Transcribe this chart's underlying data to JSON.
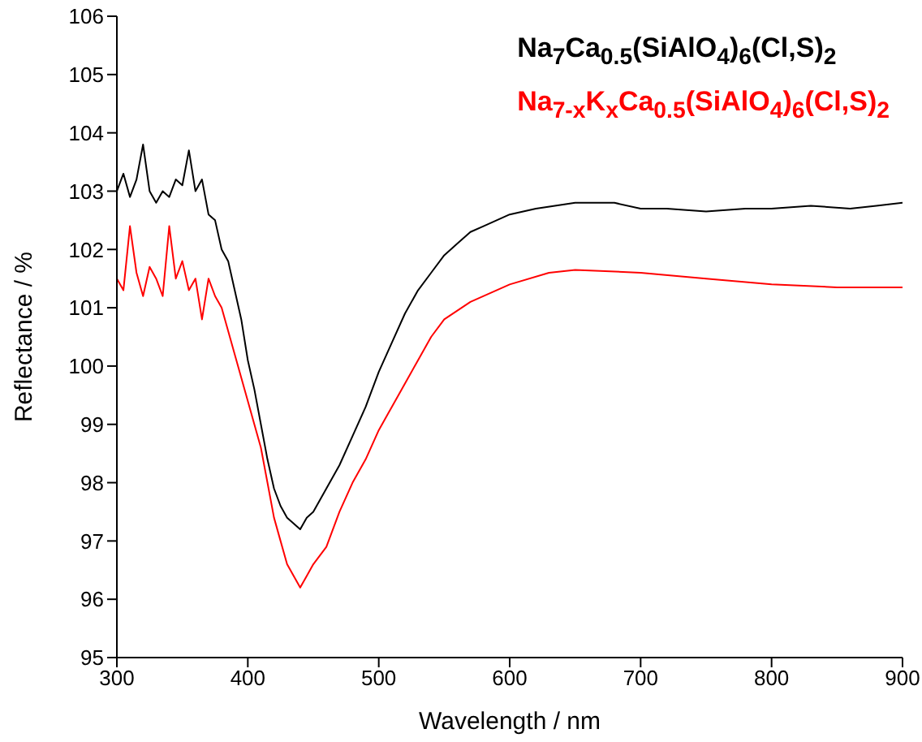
{
  "chart_data": {
    "type": "line",
    "xlabel": "Wavelength / nm",
    "ylabel": "Reflectance / %",
    "xlim": [
      300,
      900
    ],
    "xticks": [
      300,
      400,
      500,
      600,
      700,
      800,
      900
    ],
    "ylim": [
      95,
      106
    ],
    "yticks": [
      95,
      96,
      97,
      98,
      99,
      100,
      101,
      102,
      103,
      104,
      105,
      106
    ],
    "grid": false,
    "marker": "none",
    "line_style": "solid",
    "series": [
      {
        "name": "Na$_{7}$Ca$_{0.5}$(SiAlO$_{4}$)$_{6}$(Cl,S)$_{2}$",
        "color": "#000000",
        "x": [
          300,
          305,
          310,
          315,
          320,
          325,
          330,
          335,
          340,
          345,
          350,
          355,
          360,
          365,
          370,
          375,
          380,
          385,
          390,
          395,
          400,
          405,
          410,
          415,
          420,
          425,
          430,
          440,
          445,
          450,
          460,
          470,
          480,
          490,
          500,
          510,
          520,
          530,
          540,
          550,
          560,
          570,
          580,
          600,
          620,
          650,
          680,
          700,
          720,
          750,
          780,
          800,
          830,
          860,
          880,
          900
        ],
        "values": [
          103.0,
          103.3,
          102.9,
          103.2,
          103.8,
          103.0,
          102.8,
          103.0,
          102.9,
          103.2,
          103.1,
          103.7,
          103.0,
          103.2,
          102.6,
          102.5,
          102.0,
          101.8,
          101.3,
          100.8,
          100.1,
          99.6,
          99.0,
          98.4,
          97.9,
          97.6,
          97.4,
          97.2,
          97.4,
          97.5,
          97.9,
          98.3,
          98.8,
          99.3,
          99.9,
          100.4,
          100.9,
          101.3,
          101.6,
          101.9,
          102.1,
          102.3,
          102.4,
          102.6,
          102.7,
          102.8,
          102.8,
          102.7,
          102.7,
          102.65,
          102.7,
          102.7,
          102.75,
          102.7,
          102.75,
          102.8
        ]
      },
      {
        "name": "Na$_{7-x}$K$_{x}$Ca$_{0.5}$(SiAlO$_{4}$)$_{6}$(Cl,S)$_{2}$",
        "color": "#ff0000",
        "x": [
          300,
          305,
          310,
          315,
          320,
          325,
          330,
          335,
          340,
          345,
          350,
          355,
          360,
          365,
          370,
          375,
          380,
          385,
          390,
          395,
          400,
          405,
          410,
          415,
          420,
          425,
          430,
          440,
          445,
          450,
          460,
          470,
          480,
          490,
          500,
          510,
          520,
          530,
          540,
          550,
          570,
          600,
          630,
          650,
          700,
          750,
          800,
          850,
          900
        ],
        "values": [
          101.5,
          101.3,
          102.4,
          101.6,
          101.2,
          101.7,
          101.5,
          101.2,
          102.4,
          101.5,
          101.8,
          101.3,
          101.5,
          100.8,
          101.5,
          101.2,
          101.0,
          100.6,
          100.2,
          99.8,
          99.4,
          99.0,
          98.6,
          98.0,
          97.4,
          97.0,
          96.6,
          96.2,
          96.4,
          96.6,
          96.9,
          97.5,
          98.0,
          98.4,
          98.9,
          99.3,
          99.7,
          100.1,
          100.5,
          100.8,
          101.1,
          101.4,
          101.6,
          101.65,
          101.6,
          101.5,
          101.4,
          101.35,
          101.35
        ]
      }
    ]
  }
}
